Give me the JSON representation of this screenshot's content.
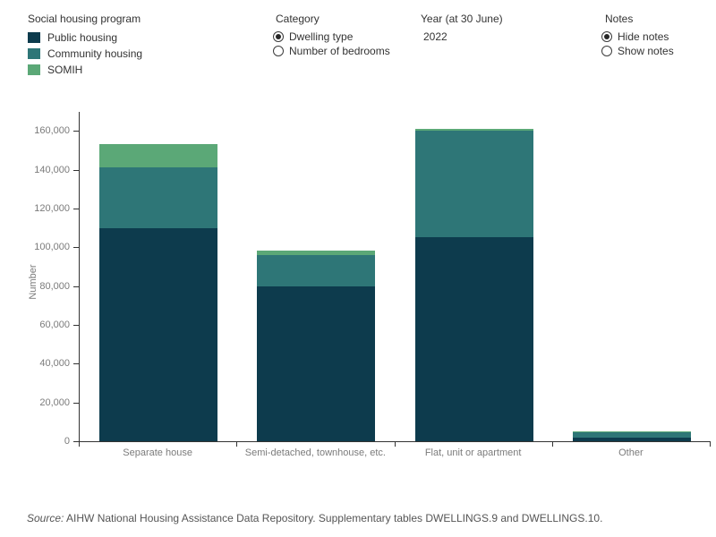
{
  "controls": {
    "legend": {
      "title": "Social housing program",
      "items": [
        {
          "label": "Public housing",
          "color": "#0d3b4d"
        },
        {
          "label": "Community housing",
          "color": "#2e7677"
        },
        {
          "label": "SOMIH",
          "color": "#5ba877"
        }
      ]
    },
    "category": {
      "title": "Category",
      "options": [
        {
          "label": "Dwelling type",
          "selected": true
        },
        {
          "label": "Number of bedrooms",
          "selected": false
        }
      ]
    },
    "year": {
      "title": "Year (at 30 June)",
      "value": "2022"
    },
    "notes": {
      "title": "Notes",
      "options": [
        {
          "label": "Hide notes",
          "selected": true
        },
        {
          "label": "Show notes",
          "selected": false
        }
      ]
    }
  },
  "chart_data": {
    "type": "bar",
    "stacked": true,
    "title": "",
    "xlabel": "",
    "ylabel": "Number",
    "ylim": [
      0,
      160000
    ],
    "yticks": [
      0,
      20000,
      40000,
      60000,
      80000,
      100000,
      120000,
      140000,
      160000
    ],
    "grid": false,
    "legend_position": "top-left",
    "categories": [
      "Separate house",
      "Semi-detached, townhouse, etc.",
      "Flat, unit or apartment",
      "Other"
    ],
    "series": [
      {
        "name": "Public housing",
        "color": "#0d3b4d",
        "values": [
          110000,
          80000,
          105000,
          2000
        ]
      },
      {
        "name": "Community housing",
        "color": "#2e7677",
        "values": [
          31000,
          16000,
          55000,
          2500
        ]
      },
      {
        "name": "SOMIH",
        "color": "#5ba877",
        "values": [
          12000,
          2500,
          1000,
          500
        ]
      }
    ]
  },
  "source": {
    "prefix": "Source:",
    "text": " AIHW National Housing Assistance Data Repository. Supplementary tables DWELLINGS.9 and DWELLINGS.10."
  }
}
